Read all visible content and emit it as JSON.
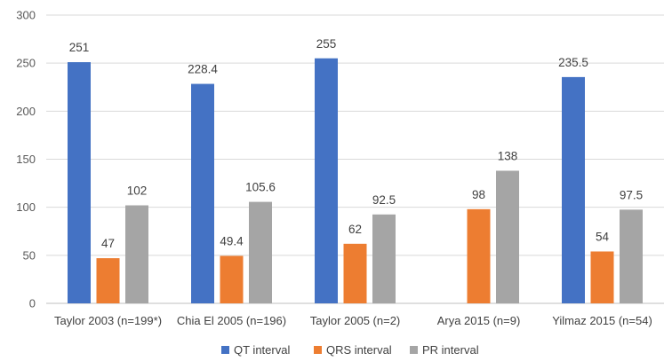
{
  "chart_data": {
    "type": "bar",
    "title": "",
    "xlabel": "",
    "ylabel": "",
    "ylim": [
      0,
      300
    ],
    "yticks": [
      0,
      50,
      100,
      150,
      200,
      250,
      300
    ],
    "grid": true,
    "legend_position": "bottom",
    "categories": [
      "Taylor 2003 (n=199*)",
      "Chia El 2005 (n=196)",
      "Taylor 2005 (n=2)",
      "Arya 2015 (n=9)",
      "Yilmaz 2015 (n=54)"
    ],
    "series": [
      {
        "name": "QT interval",
        "color": "#4472C4",
        "values": [
          251,
          228.4,
          255,
          null,
          235.5
        ]
      },
      {
        "name": "QRS interval",
        "color": "#ED7D31",
        "values": [
          47,
          49.4,
          62,
          98,
          54
        ]
      },
      {
        "name": "PR interval",
        "color": "#A5A5A5",
        "values": [
          102,
          105.6,
          92.5,
          138,
          97.5
        ]
      }
    ]
  }
}
